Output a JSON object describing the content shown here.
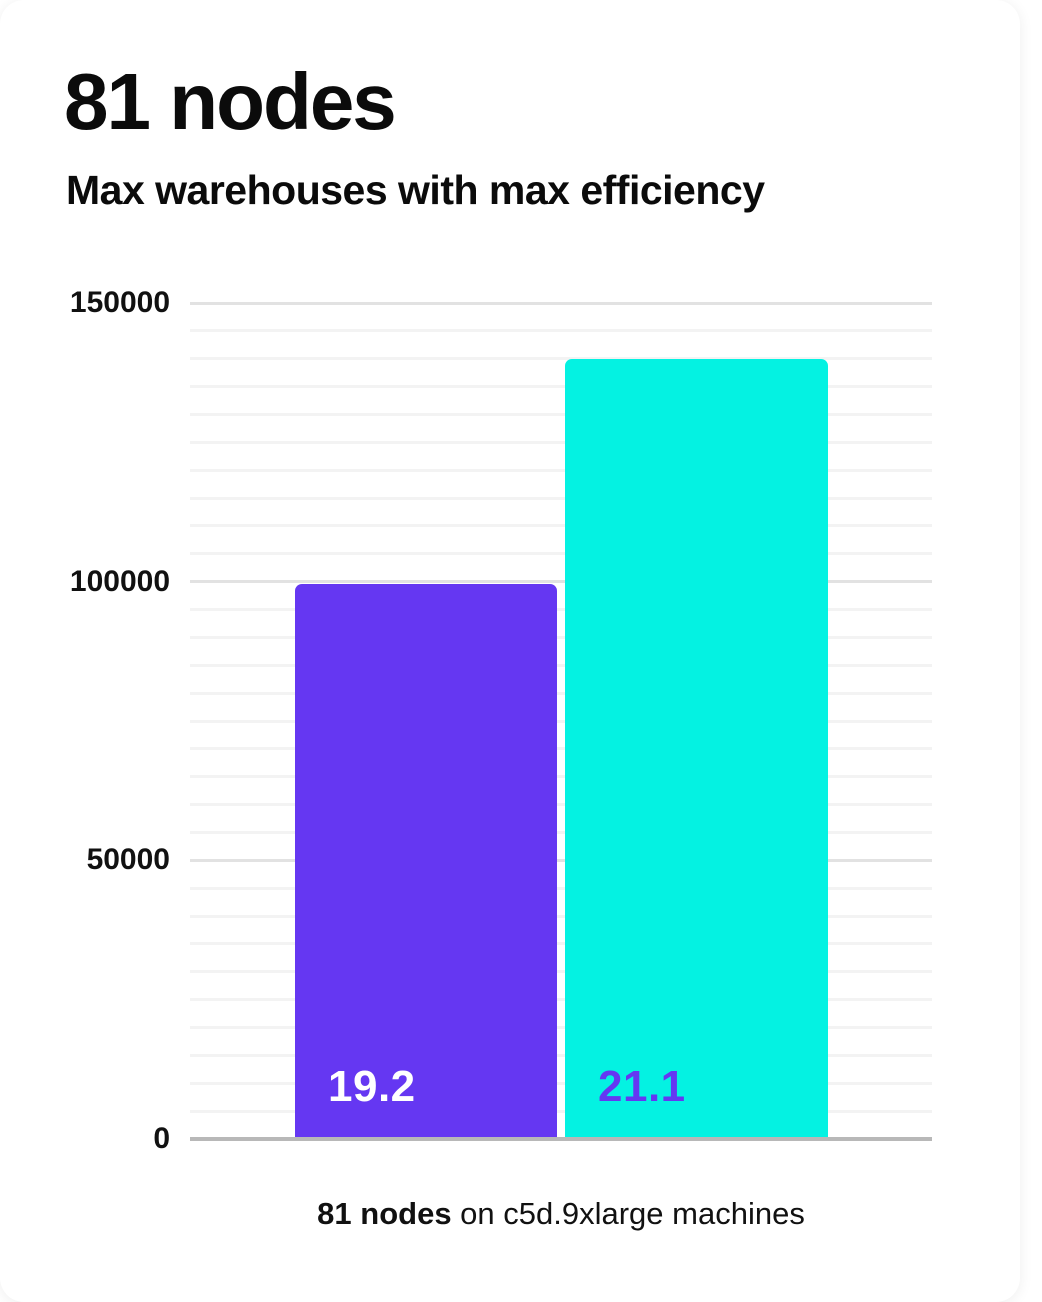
{
  "card": {
    "title": "81 nodes",
    "subtitle": "Max warehouses with max efficiency",
    "caption_bold": "81 nodes",
    "caption_rest": " on c5d.9xlarge machines"
  },
  "colors": {
    "bar1": "#6537f2",
    "bar2": "#04f2e2",
    "bar1_label": "#ffffff",
    "bar2_label": "#6537f2",
    "grid_minor": "#f3f3f3",
    "grid_major": "#e2e2e2",
    "baseline": "#b8b8b8",
    "text": "#0b0b0b",
    "card_background": "#ffffff"
  },
  "chart_data": {
    "type": "bar",
    "title": "81 nodes",
    "subtitle": "Max warehouses with max efficiency",
    "categories": [
      "19.2",
      "21.1"
    ],
    "values": [
      99500,
      140000
    ],
    "bar_labels": [
      "19.2",
      "21.1"
    ],
    "bar_colors": [
      "#6537f2",
      "#04f2e2"
    ],
    "xlabel": "81 nodes on c5d.9xlarge machines",
    "ylabel": "",
    "ylim": [
      0,
      150000
    ],
    "yticks": [
      0,
      50000,
      100000,
      150000
    ],
    "grid_minor_step": 5000,
    "grid_major_step": 50000,
    "grid": true,
    "legend_position": "none"
  }
}
